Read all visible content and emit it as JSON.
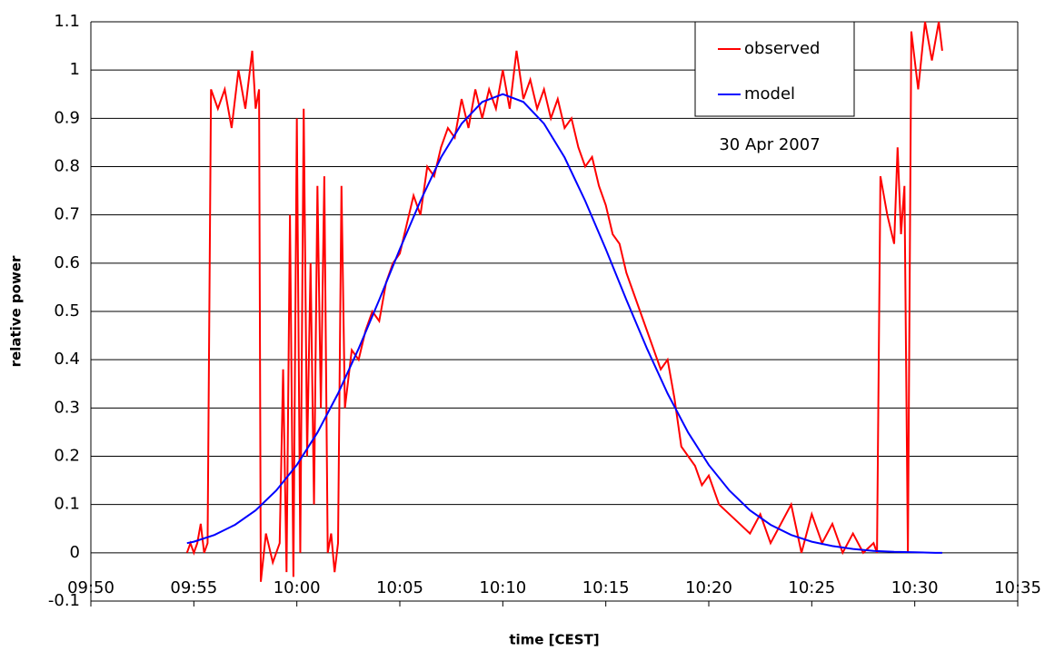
{
  "chart_data": {
    "type": "line",
    "xlabel": "time [CEST]",
    "ylabel": "relative power",
    "annotation": "30 Apr 2007",
    "legend": "upper right",
    "grid": true,
    "xlim": [
      "09:50",
      "10:35"
    ],
    "xticks": [
      "09:50",
      "09:55",
      "10:00",
      "10:05",
      "10:10",
      "10:15",
      "10:20",
      "10:25",
      "10:30",
      "10:35"
    ],
    "ylim": [
      -0.1,
      1.1
    ],
    "yticks": [
      -0.1,
      0,
      0.1,
      0.2,
      0.3,
      0.4,
      0.5,
      0.6,
      0.7,
      0.8,
      0.9,
      1,
      1.1
    ],
    "series": [
      {
        "name": "observed",
        "color": "#ff0000",
        "x": [
          "09:54:40",
          "09:54:50",
          "09:55:00",
          "09:55:10",
          "09:55:20",
          "09:55:30",
          "09:55:40",
          "09:55:50",
          "09:56:10",
          "09:56:30",
          "09:56:50",
          "09:57:10",
          "09:57:30",
          "09:57:50",
          "09:58:00",
          "09:58:10",
          "09:58:15",
          "09:58:30",
          "09:58:50",
          "09:59:10",
          "09:59:20",
          "09:59:30",
          "09:59:40",
          "09:59:50",
          "10:00:00",
          "10:00:10",
          "10:00:20",
          "10:00:30",
          "10:00:40",
          "10:00:50",
          "10:01:00",
          "10:01:10",
          "10:01:20",
          "10:01:30",
          "10:01:40",
          "10:01:50",
          "10:02:00",
          "10:02:10",
          "10:02:20",
          "10:02:40",
          "10:03:00",
          "10:03:20",
          "10:03:40",
          "10:04:00",
          "10:04:20",
          "10:04:40",
          "10:05:00",
          "10:05:20",
          "10:05:40",
          "10:06:00",
          "10:06:20",
          "10:06:40",
          "10:07:00",
          "10:07:20",
          "10:07:40",
          "10:08:00",
          "10:08:20",
          "10:08:40",
          "10:09:00",
          "10:09:20",
          "10:09:40",
          "10:10:00",
          "10:10:20",
          "10:10:40",
          "10:11:00",
          "10:11:20",
          "10:11:40",
          "10:12:00",
          "10:12:20",
          "10:12:40",
          "10:13:00",
          "10:13:20",
          "10:13:40",
          "10:14:00",
          "10:14:20",
          "10:14:40",
          "10:15:00",
          "10:15:20",
          "10:15:40",
          "10:16:00",
          "10:16:20",
          "10:16:40",
          "10:17:00",
          "10:17:20",
          "10:17:40",
          "10:18:00",
          "10:18:20",
          "10:18:40",
          "10:19:00",
          "10:19:20",
          "10:19:40",
          "10:20:00",
          "10:20:30",
          "10:21:00",
          "10:21:30",
          "10:22:00",
          "10:22:30",
          "10:23:00",
          "10:23:30",
          "10:24:00",
          "10:24:30",
          "10:25:00",
          "10:25:30",
          "10:26:00",
          "10:26:30",
          "10:27:00",
          "10:27:30",
          "10:28:00",
          "10:28:10",
          "10:28:20",
          "10:28:40",
          "10:29:00",
          "10:29:10",
          "10:29:20",
          "10:29:30",
          "10:29:40",
          "10:29:50",
          "10:30:10",
          "10:30:30",
          "10:30:50",
          "10:31:10",
          "10:31:20"
        ],
        "values": [
          0,
          0.02,
          0,
          0.02,
          0.06,
          0,
          0.02,
          0.96,
          0.92,
          0.96,
          0.88,
          1.0,
          0.92,
          1.04,
          0.92,
          0.96,
          -0.06,
          0.04,
          -0.02,
          0.02,
          0.38,
          -0.04,
          0.7,
          -0.05,
          0.9,
          0.0,
          0.92,
          0.2,
          0.6,
          0.1,
          0.76,
          0.3,
          0.78,
          0.0,
          0.04,
          -0.04,
          0.02,
          0.76,
          0.3,
          0.42,
          0.4,
          0.46,
          0.5,
          0.48,
          0.56,
          0.6,
          0.62,
          0.68,
          0.74,
          0.7,
          0.8,
          0.78,
          0.84,
          0.88,
          0.86,
          0.94,
          0.88,
          0.96,
          0.9,
          0.96,
          0.92,
          1.0,
          0.92,
          1.04,
          0.94,
          0.98,
          0.92,
          0.96,
          0.9,
          0.94,
          0.88,
          0.9,
          0.84,
          0.8,
          0.82,
          0.76,
          0.72,
          0.66,
          0.64,
          0.58,
          0.54,
          0.5,
          0.46,
          0.42,
          0.38,
          0.4,
          0.32,
          0.22,
          0.2,
          0.18,
          0.14,
          0.16,
          0.1,
          0.08,
          0.06,
          0.04,
          0.08,
          0.02,
          0.06,
          0.1,
          0.0,
          0.08,
          0.02,
          0.06,
          0.0,
          0.04,
          0.0,
          0.02,
          0.0,
          0.78,
          0.7,
          0.64,
          0.84,
          0.66,
          0.76,
          0.0,
          1.08,
          0.96,
          1.1,
          1.02,
          1.1,
          1.04
        ]
      },
      {
        "name": "model",
        "color": "#0000ff",
        "x": [
          "09:54:40",
          "09:55",
          "09:56",
          "09:57",
          "09:58",
          "09:59",
          "10:00",
          "10:01",
          "10:02",
          "10:03",
          "10:04",
          "10:05",
          "10:06",
          "10:07",
          "10:08",
          "10:09",
          "10:10",
          "10:11",
          "10:12",
          "10:13",
          "10:14",
          "10:15",
          "10:16",
          "10:17",
          "10:18",
          "10:19",
          "10:20",
          "10:21",
          "10:22",
          "10:23",
          "10:24",
          "10:25",
          "10:26",
          "10:27",
          "10:28",
          "10:29",
          "10:30",
          "10:31",
          "10:31:20"
        ],
        "values": [
          0.02,
          0.023,
          0.037,
          0.058,
          0.088,
          0.129,
          0.182,
          0.249,
          0.33,
          0.423,
          0.524,
          0.629,
          0.729,
          0.819,
          0.889,
          0.934,
          0.95,
          0.934,
          0.889,
          0.819,
          0.729,
          0.629,
          0.524,
          0.423,
          0.33,
          0.249,
          0.182,
          0.129,
          0.088,
          0.058,
          0.037,
          0.023,
          0.014,
          0.008,
          0.004,
          0.002,
          0.001,
          0,
          0
        ]
      }
    ]
  }
}
